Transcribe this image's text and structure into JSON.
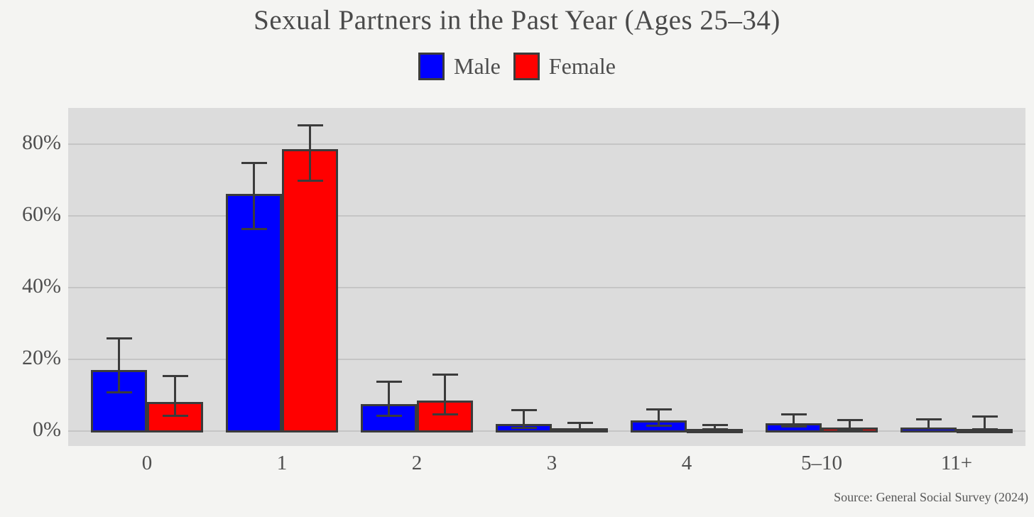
{
  "title": "Sexual Partners in the Past Year (Ages 25–34)",
  "source": "Source: General Social Survey (2024)",
  "colors": {
    "male": "#0000ff",
    "female": "#ff0000",
    "bar_edge": "#3b3b3b",
    "panel_background": "#dcdcdc",
    "page_background": "#f4f4f2",
    "gridline": "#c5c5c5",
    "text": "#4a4a4a"
  },
  "legend": [
    {
      "label": "Male",
      "color": "#0000ff"
    },
    {
      "label": "Female",
      "color": "#ff0000"
    }
  ],
  "chart_data": {
    "type": "bar",
    "title": "Sexual Partners in the Past Year (Ages 25–34)",
    "xlabel": "",
    "ylabel": "",
    "categories": [
      "0",
      "1",
      "2",
      "3",
      "4",
      "5–10",
      "11+"
    ],
    "series": [
      {
        "name": "Male",
        "color": "#0000ff",
        "values": [
          17,
          66,
          7.5,
          2,
          3,
          2.2,
          1
        ],
        "ci_low": [
          10.5,
          56,
          4,
          0.5,
          1.2,
          1,
          0.3
        ],
        "ci_high": [
          26,
          75,
          14,
          6,
          6.3,
          5,
          3.6
        ]
      },
      {
        "name": "Female",
        "color": "#ff0000",
        "values": [
          8,
          78.5,
          8.5,
          0.8,
          0.5,
          1,
          0.6
        ],
        "ci_low": [
          4,
          69.5,
          4.3,
          0.1,
          0.1,
          0.2,
          0.1
        ],
        "ci_high": [
          15.5,
          85.5,
          16,
          2.5,
          2,
          3.4,
          4.4
        ]
      }
    ],
    "error_bars": true,
    "y_ticks": [
      {
        "value": 0,
        "label": "0%"
      },
      {
        "value": 20,
        "label": "20%"
      },
      {
        "value": 40,
        "label": "40%"
      },
      {
        "value": 60,
        "label": "60%"
      },
      {
        "value": 80,
        "label": "80%"
      }
    ],
    "ylim": [
      -4.2,
      90
    ],
    "grid": true,
    "legend_position": "top",
    "annotations": [
      "Source: General Social Survey (2024)"
    ]
  }
}
